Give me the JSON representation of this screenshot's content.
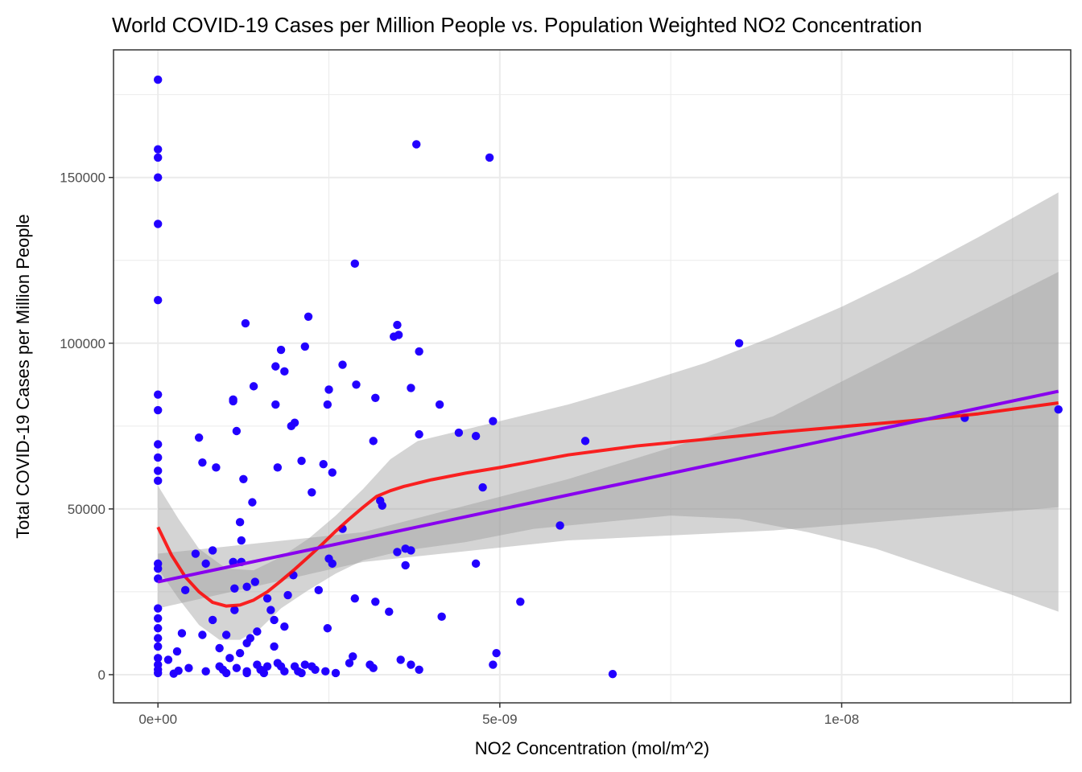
{
  "chart_data": {
    "type": "scatter",
    "title": "World COVID-19 Cases per Million People vs. Population Weighted NO2 Concentration",
    "xlabel": "NO2 Concentration (mol/m^2)",
    "ylabel": "Total COVID-19 Cases per Million People",
    "xlim": [
      -6.5e-10,
      1.335e-08
    ],
    "ylim": [
      -8500,
      188500
    ],
    "x_ticks": [
      {
        "value": 0,
        "label": "0e+00"
      },
      {
        "value": 5e-09,
        "label": "5e-09"
      },
      {
        "value": 1e-08,
        "label": "1e-08"
      }
    ],
    "y_ticks": [
      {
        "value": 0,
        "label": "0"
      },
      {
        "value": 50000,
        "label": "50000"
      },
      {
        "value": 100000,
        "label": "100000"
      },
      {
        "value": 150000,
        "label": "150000"
      }
    ],
    "x_minor_grid": [
      2.5e-09,
      7.5e-09,
      1.25e-08
    ],
    "y_minor_grid": [
      25000,
      75000,
      125000,
      175000
    ],
    "grid": true,
    "legend": "none",
    "colors": {
      "points": "#2200ff",
      "loess": "#ff0000",
      "linear": "#8800ee",
      "ribbon": "#999999",
      "panel_border": "#333333",
      "grid": "#ebebeb"
    },
    "points": [
      [
        0,
        179500
      ],
      [
        0,
        158500
      ],
      [
        0,
        156000
      ],
      [
        0,
        150000
      ],
      [
        0,
        136000
      ],
      [
        0,
        113000
      ],
      [
        0,
        84500
      ],
      [
        0,
        79800
      ],
      [
        0,
        69500
      ],
      [
        0,
        65500
      ],
      [
        0,
        61500
      ],
      [
        0,
        58500
      ],
      [
        0,
        33500
      ],
      [
        0,
        32000
      ],
      [
        0,
        29000
      ],
      [
        0,
        20000
      ],
      [
        0,
        17000
      ],
      [
        0,
        14000
      ],
      [
        0,
        11000
      ],
      [
        0,
        8500
      ],
      [
        0,
        5000
      ],
      [
        0,
        3000
      ],
      [
        0,
        1500
      ],
      [
        0,
        500
      ],
      [
        1.5e-10,
        4500
      ],
      [
        2.3e-10,
        300
      ],
      [
        2.8e-10,
        7000
      ],
      [
        3e-10,
        1200
      ],
      [
        3.5e-10,
        12500
      ],
      [
        4e-10,
        25500
      ],
      [
        4.5e-10,
        2000
      ],
      [
        5.5e-10,
        36500
      ],
      [
        6e-10,
        71500
      ],
      [
        6.5e-10,
        12000
      ],
      [
        6.5e-10,
        64000
      ],
      [
        7e-10,
        1000
      ],
      [
        7e-10,
        33500
      ],
      [
        8e-10,
        16500
      ],
      [
        8e-10,
        37500
      ],
      [
        8.5e-10,
        62500
      ],
      [
        9e-10,
        8000
      ],
      [
        9e-10,
        2500
      ],
      [
        9.5e-10,
        1500
      ],
      [
        1e-09,
        500
      ],
      [
        1e-09,
        12000
      ],
      [
        1.05e-09,
        5000
      ],
      [
        1.1e-09,
        82500
      ],
      [
        1.1e-09,
        83000
      ],
      [
        1.1e-09,
        34000
      ],
      [
        1.12e-09,
        19500
      ],
      [
        1.12e-09,
        26000
      ],
      [
        1.15e-09,
        73500
      ],
      [
        1.15e-09,
        2000
      ],
      [
        1.2e-09,
        6500
      ],
      [
        1.2e-09,
        46000
      ],
      [
        1.22e-09,
        40500
      ],
      [
        1.22e-09,
        34000
      ],
      [
        1.25e-09,
        59000
      ],
      [
        1.28e-09,
        106000
      ],
      [
        1.3e-09,
        26500
      ],
      [
        1.3e-09,
        9500
      ],
      [
        1.3e-09,
        1000
      ],
      [
        1.3e-09,
        500
      ],
      [
        1.35e-09,
        11000
      ],
      [
        1.38e-09,
        52000
      ],
      [
        1.4e-09,
        87000
      ],
      [
        1.42e-09,
        28000
      ],
      [
        1.45e-09,
        13000
      ],
      [
        1.45e-09,
        3000
      ],
      [
        1.5e-09,
        1500
      ],
      [
        1.55e-09,
        500
      ],
      [
        1.6e-09,
        2500
      ],
      [
        1.6e-09,
        23000
      ],
      [
        1.65e-09,
        19500
      ],
      [
        1.7e-09,
        16500
      ],
      [
        1.7e-09,
        8500
      ],
      [
        1.72e-09,
        81500
      ],
      [
        1.72e-09,
        93000
      ],
      [
        1.75e-09,
        62500
      ],
      [
        1.75e-09,
        3500
      ],
      [
        1.8e-09,
        98000
      ],
      [
        1.8e-09,
        2500
      ],
      [
        1.85e-09,
        91500
      ],
      [
        1.85e-09,
        14500
      ],
      [
        1.85e-09,
        1000
      ],
      [
        1.9e-09,
        24000
      ],
      [
        1.95e-09,
        75000
      ],
      [
        1.98e-09,
        30000
      ],
      [
        2e-09,
        2500
      ],
      [
        2e-09,
        76000
      ],
      [
        2.05e-09,
        1000
      ],
      [
        2.1e-09,
        64500
      ],
      [
        2.1e-09,
        500
      ],
      [
        2.15e-09,
        99000
      ],
      [
        2.15e-09,
        3000
      ],
      [
        2.2e-09,
        108000
      ],
      [
        2.25e-09,
        55000
      ],
      [
        2.25e-09,
        2500
      ],
      [
        2.3e-09,
        1500
      ],
      [
        2.35e-09,
        25500
      ],
      [
        2.42e-09,
        63500
      ],
      [
        2.45e-09,
        1000
      ],
      [
        2.48e-09,
        14000
      ],
      [
        2.48e-09,
        81500
      ],
      [
        2.5e-09,
        86000
      ],
      [
        2.5e-09,
        35000
      ],
      [
        2.55e-09,
        33500
      ],
      [
        2.55e-09,
        61000
      ],
      [
        2.6e-09,
        500
      ],
      [
        2.7e-09,
        44000
      ],
      [
        2.7e-09,
        93500
      ],
      [
        2.8e-09,
        3500
      ],
      [
        2.85e-09,
        5500
      ],
      [
        2.88e-09,
        124000
      ],
      [
        2.88e-09,
        23000
      ],
      [
        2.9e-09,
        87500
      ],
      [
        3.1e-09,
        3000
      ],
      [
        3.15e-09,
        70500
      ],
      [
        3.15e-09,
        2000
      ],
      [
        3.18e-09,
        22000
      ],
      [
        3.18e-09,
        83500
      ],
      [
        3.25e-09,
        52500
      ],
      [
        3.28e-09,
        51000
      ],
      [
        3.38e-09,
        19000
      ],
      [
        3.45e-09,
        102000
      ],
      [
        3.5e-09,
        37000
      ],
      [
        3.5e-09,
        105500
      ],
      [
        3.52e-09,
        102500
      ],
      [
        3.55e-09,
        4500
      ],
      [
        3.62e-09,
        33000
      ],
      [
        3.62e-09,
        38000
      ],
      [
        3.7e-09,
        37500
      ],
      [
        3.7e-09,
        86500
      ],
      [
        3.7e-09,
        3000
      ],
      [
        3.78e-09,
        160000
      ],
      [
        3.82e-09,
        97500
      ],
      [
        3.82e-09,
        72500
      ],
      [
        3.82e-09,
        1500
      ],
      [
        4.12e-09,
        81500
      ],
      [
        4.15e-09,
        17500
      ],
      [
        4.4e-09,
        73000
      ],
      [
        4.65e-09,
        72000
      ],
      [
        4.65e-09,
        33500
      ],
      [
        4.75e-09,
        56500
      ],
      [
        4.85e-09,
        156000
      ],
      [
        4.9e-09,
        76500
      ],
      [
        4.9e-09,
        3000
      ],
      [
        4.95e-09,
        6500
      ],
      [
        5.3e-09,
        22000
      ],
      [
        5.88e-09,
        45000
      ],
      [
        6.25e-09,
        70500
      ],
      [
        6.65e-09,
        200
      ],
      [
        8.5e-09,
        100000
      ],
      [
        1.18e-08,
        77500
      ],
      [
        1.317e-08,
        80000
      ]
    ],
    "linear_fit": {
      "x": [
        0,
        1.317e-08
      ],
      "y": [
        28000,
        85500
      ],
      "ci_upper": [
        [
          0,
          36500
        ],
        [
          3e-09,
          43000
        ],
        [
          6e-09,
          59000
        ],
        [
          9e-09,
          78000
        ],
        [
          1.317e-08,
          121500
        ]
      ],
      "ci_lower": [
        [
          0,
          20000
        ],
        [
          3e-09,
          34000
        ],
        [
          6e-09,
          40500
        ],
        [
          9e-09,
          43500
        ],
        [
          1.317e-08,
          50500
        ]
      ]
    },
    "loess_fit": {
      "x": [
        0,
        2e-10,
        4e-10,
        6e-10,
        8e-10,
        1e-09,
        1.2e-09,
        1.4e-09,
        1.6e-09,
        1.8e-09,
        2e-09,
        2.2e-09,
        2.4e-09,
        2.6e-09,
        2.8e-09,
        3e-09,
        3.2e-09,
        3.4e-09,
        3.6e-09,
        3.8e-09,
        4e-09,
        4.5e-09,
        5e-09,
        6e-09,
        7e-09,
        8e-09,
        9e-09,
        1e-08,
        1.1e-08,
        1.2e-08,
        1.317e-08
      ],
      "y": [
        44500,
        36000,
        29500,
        25000,
        21800,
        20700,
        21000,
        22500,
        25000,
        28300,
        31800,
        35500,
        39300,
        43300,
        47000,
        50500,
        53800,
        55500,
        56800,
        57800,
        58800,
        60800,
        62500,
        66300,
        69000,
        71000,
        73000,
        74800,
        76600,
        78700,
        82000
      ],
      "ci_upper": [
        [
          0,
          57000
        ],
        [
          3e-10,
          47000
        ],
        [
          6e-10,
          38000
        ],
        [
          1e-09,
          32000
        ],
        [
          1.4e-09,
          31500
        ],
        [
          1.8e-09,
          35500
        ],
        [
          2.2e-09,
          41000
        ],
        [
          2.6e-09,
          48000
        ],
        [
          3e-09,
          56000
        ],
        [
          3.4e-09,
          65000
        ],
        [
          3.8e-09,
          70500
        ],
        [
          4.5e-09,
          74000
        ],
        [
          6e-09,
          81500
        ],
        [
          7e-09,
          87500
        ],
        [
          8e-09,
          94000
        ],
        [
          9e-09,
          102000
        ],
        [
          1e-08,
          111000
        ],
        [
          1.1e-08,
          121000
        ],
        [
          1.2e-08,
          132000
        ],
        [
          1.317e-08,
          145500
        ]
      ],
      "ci_lower": [
        [
          0,
          32000
        ],
        [
          3e-10,
          23000
        ],
        [
          6e-10,
          15000
        ],
        [
          9e-10,
          10500
        ],
        [
          1.2e-09,
          10500
        ],
        [
          1.5e-09,
          14000
        ],
        [
          1.8e-09,
          20000
        ],
        [
          2.2e-09,
          25500
        ],
        [
          2.6e-09,
          30500
        ],
        [
          3e-09,
          34500
        ],
        [
          3.4e-09,
          36500
        ],
        [
          3.8e-09,
          38000
        ],
        [
          4.5e-09,
          40000
        ],
        [
          5.5e-09,
          44000
        ],
        [
          6.5e-09,
          46000
        ],
        [
          7.5e-09,
          48000
        ],
        [
          8.5e-09,
          47000
        ],
        [
          9.5e-09,
          43000
        ],
        [
          1.05e-08,
          38000
        ],
        [
          1.15e-08,
          31000
        ],
        [
          1.25e-08,
          24000
        ],
        [
          1.317e-08,
          19000
        ]
      ]
    }
  }
}
